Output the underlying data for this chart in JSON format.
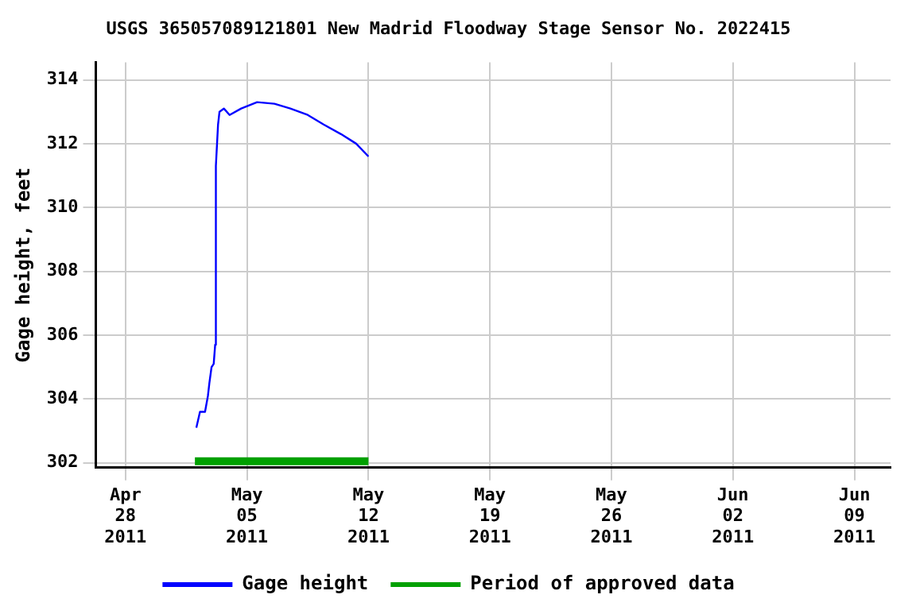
{
  "chart_data": {
    "type": "line",
    "title": "USGS 365057089121801 New Madrid Floodway Stage Sensor No. 2022415",
    "ylabel": "Gage height, feet",
    "series": [
      {
        "name": "Gage height",
        "color": "#0000ff",
        "x": [
          "2011-05-02T02:00",
          "2011-05-02T07:00",
          "2011-05-02T14:00",
          "2011-05-02T18:00",
          "2011-05-02T20:00",
          "2011-05-02T23:00",
          "2011-05-03T02:00",
          "2011-05-03T04:00",
          "2011-05-03T05:00",
          "2011-05-03T08:00",
          "2011-05-03T10:00",
          "2011-05-03T16:00",
          "2011-05-04T00:00",
          "2011-05-04T16:00",
          "2011-05-05T14:00",
          "2011-05-06T14:00",
          "2011-05-07T12:00",
          "2011-05-08T12:00",
          "2011-05-09T10:00",
          "2011-05-10T10:00",
          "2011-05-11T07:00",
          "2011-05-12T00:00"
        ],
        "values": [
          303.1,
          303.6,
          303.6,
          304.1,
          304.5,
          305.0,
          305.1,
          305.7,
          311.3,
          312.6,
          313.0,
          313.1,
          312.9,
          313.1,
          313.3,
          313.25,
          313.1,
          312.9,
          312.6,
          312.3,
          312.0,
          311.6
        ]
      },
      {
        "name": "Period of approved data",
        "color": "#00a000",
        "x": [
          "2011-05-02",
          "2011-05-12"
        ],
        "values": [
          302.05,
          302.05
        ]
      }
    ],
    "xlim": [
      "2011-04-26T07:00",
      "2011-06-11T02:00"
    ],
    "xticks": [
      {
        "value": "2011-04-28",
        "label": "Apr\n28\n2011"
      },
      {
        "value": "2011-05-05",
        "label": "May\n05\n2011"
      },
      {
        "value": "2011-05-12",
        "label": "May\n12\n2011"
      },
      {
        "value": "2011-05-19",
        "label": "May\n19\n2011"
      },
      {
        "value": "2011-05-26",
        "label": "May\n26\n2011"
      },
      {
        "value": "2011-06-02",
        "label": "Jun\n02\n2011"
      },
      {
        "value": "2011-06-09",
        "label": "Jun\n09\n2011"
      }
    ],
    "ylim": [
      301.85,
      314.55
    ],
    "yticks": [
      302,
      304,
      306,
      308,
      310,
      312,
      314
    ],
    "grid": true,
    "legend": "bottom",
    "marker": "none",
    "line_style": "solid"
  }
}
